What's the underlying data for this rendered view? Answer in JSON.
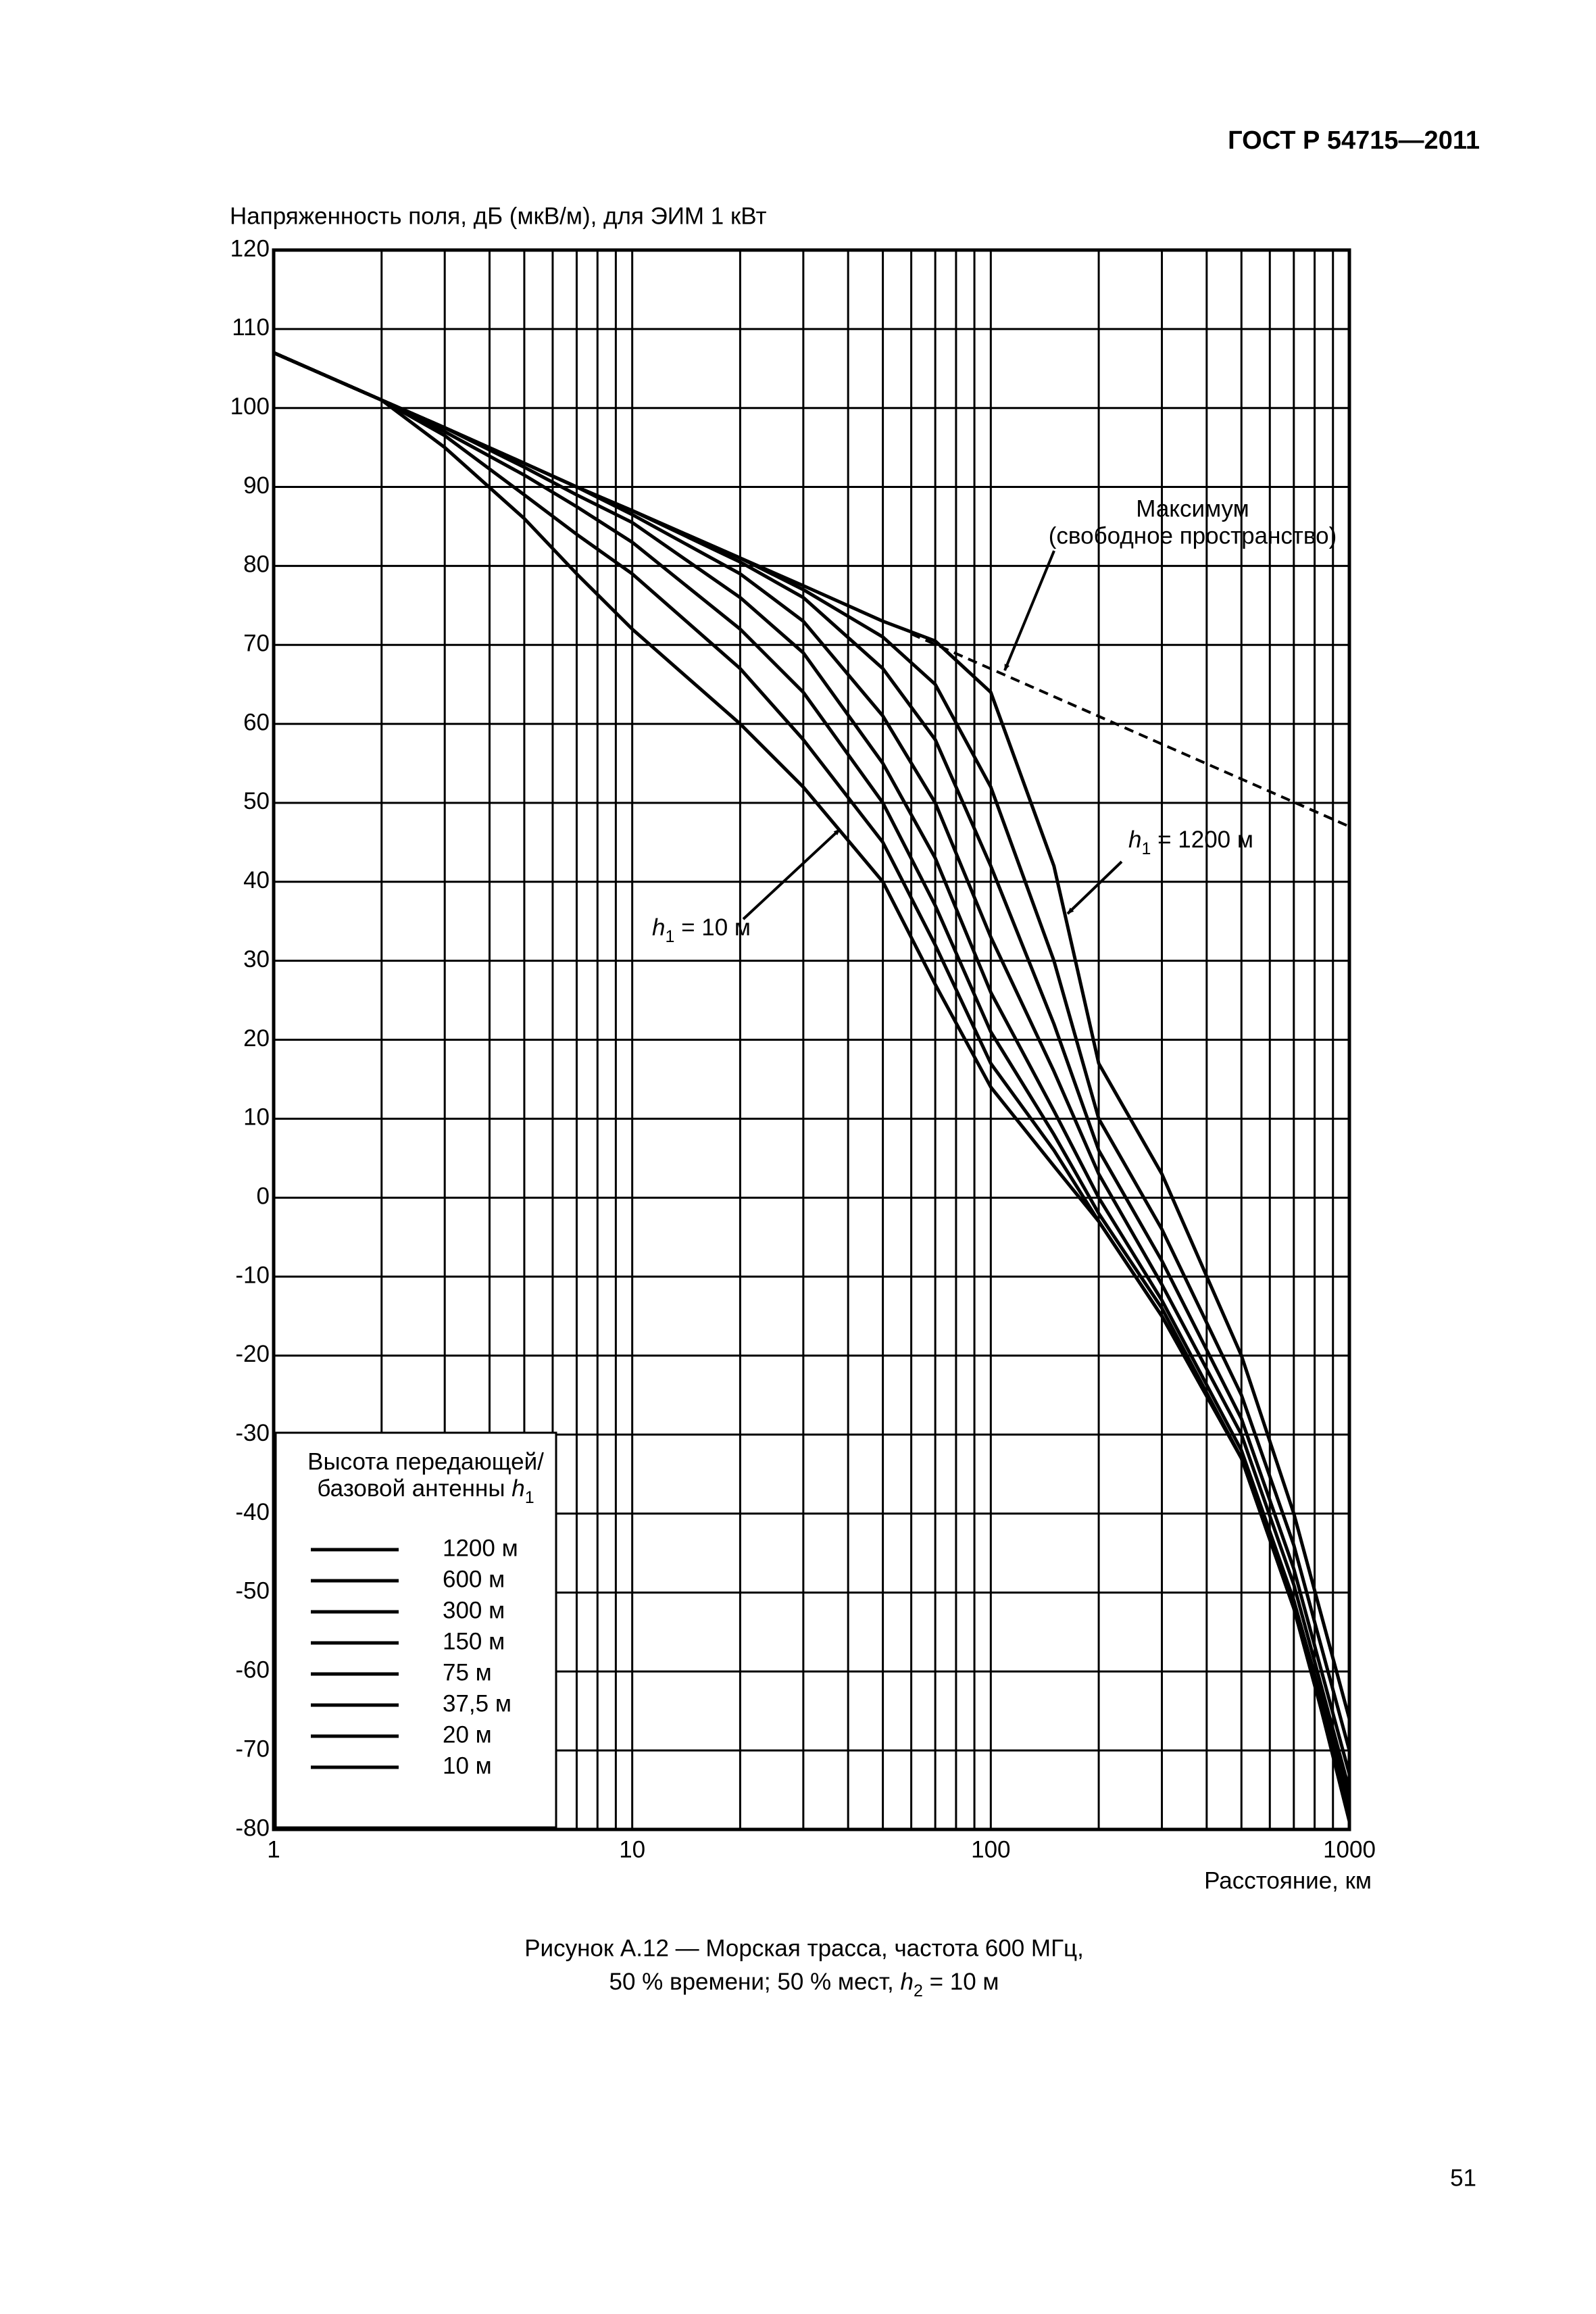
{
  "header": {
    "title": "ГОСТ Р 54715—2011"
  },
  "chart_data": {
    "type": "line",
    "y_axis_label": "Напряженность поля, дБ (мкВ/м), для ЭИМ 1 кВт",
    "x_axis_label": "Расстояние, км",
    "x_log_scale": true,
    "xlim": [
      1,
      1000
    ],
    "ylim": [
      -80,
      120
    ],
    "xticks": [
      1,
      10,
      100,
      1000
    ],
    "x_minor_grid": [
      2,
      3,
      4,
      5,
      6,
      7,
      8,
      9,
      20,
      30,
      40,
      50,
      60,
      70,
      80,
      90,
      200,
      300,
      400,
      500,
      600,
      700,
      800,
      900
    ],
    "yticks": [
      -80,
      -70,
      -60,
      -50,
      -40,
      -30,
      -20,
      -10,
      0,
      10,
      20,
      30,
      40,
      50,
      60,
      70,
      80,
      90,
      100,
      110,
      120
    ],
    "grid": true,
    "x": [
      1,
      2,
      3,
      5,
      7,
      10,
      20,
      30,
      50,
      70,
      100,
      150,
      200,
      300,
      500,
      700,
      1000
    ],
    "legend_title": [
      "Высота передающей/",
      "базовой антенны "
    ],
    "legend_title_symbol": "h",
    "legend_title_subscript": "1",
    "legend_position": "lower left",
    "series": [
      {
        "name": "1200 м",
        "color": "#000000",
        "values": [
          107,
          101,
          97.5,
          93,
          90,
          87,
          81,
          77.5,
          73,
          70.5,
          64,
          42,
          17,
          3,
          -20,
          -40,
          -66
        ]
      },
      {
        "name": "600 м",
        "color": "#000000",
        "values": [
          107,
          101,
          97.5,
          93,
          90,
          87,
          81,
          77,
          71,
          65,
          52,
          30,
          10,
          -4,
          -25,
          -44,
          -70
        ]
      },
      {
        "name": "300 м",
        "color": "#000000",
        "values": [
          107,
          101,
          97.5,
          93,
          90,
          87,
          80.5,
          76,
          67,
          58,
          42,
          22,
          6,
          -8,
          -28,
          -47,
          -73
        ]
      },
      {
        "name": "150 м",
        "color": "#000000",
        "values": [
          107,
          101,
          97.5,
          93,
          90,
          86.5,
          79,
          73,
          61,
          50,
          33,
          16,
          3,
          -11,
          -30,
          -49,
          -75
        ]
      },
      {
        "name": "75 м",
        "color": "#000000",
        "values": [
          107,
          101,
          97.5,
          92.5,
          89,
          85.5,
          76,
          69,
          55,
          43,
          26,
          11,
          0,
          -13,
          -32,
          -51,
          -76
        ]
      },
      {
        "name": "37,5 м",
        "color": "#000000",
        "values": [
          107,
          101,
          97,
          91.5,
          87.5,
          83,
          72,
          64,
          50,
          37,
          21,
          8,
          -2,
          -14,
          -33,
          -52,
          -77
        ]
      },
      {
        "name": "20 м",
        "color": "#000000",
        "values": [
          107,
          101,
          96.5,
          89,
          84,
          79,
          67,
          58,
          45,
          32,
          17,
          6,
          -3,
          -15,
          -33,
          -52,
          -78
        ]
      },
      {
        "name": "10 м",
        "color": "#000000",
        "values": [
          107,
          101,
          95,
          86,
          79,
          72,
          60,
          52,
          40,
          27,
          14,
          4,
          -3,
          -15,
          -33,
          -51,
          -79
        ]
      }
    ],
    "reference_line": {
      "x": [
        60,
        1000
      ],
      "values": [
        71.4,
        47
      ],
      "dashed": true,
      "color": "#000000"
    },
    "annotations": {
      "maximum": [
        "Максимум",
        "(свободное пространство)"
      ],
      "h1_1200": {
        "symbol": "h",
        "subscript": "1",
        "text": " = 1200 м"
      },
      "h1_10": {
        "symbol": "h",
        "subscript": "1",
        "text": " = 10 м"
      }
    }
  },
  "caption": {
    "line1": "Рисунок А.12 — Морская трасса, частота 600 МГц,",
    "line2": "50 % времени; 50 % мест, ",
    "line2_symbol": "h",
    "line2_subscript": "2",
    "line2_end": " = 10 м"
  },
  "page_number": "51"
}
